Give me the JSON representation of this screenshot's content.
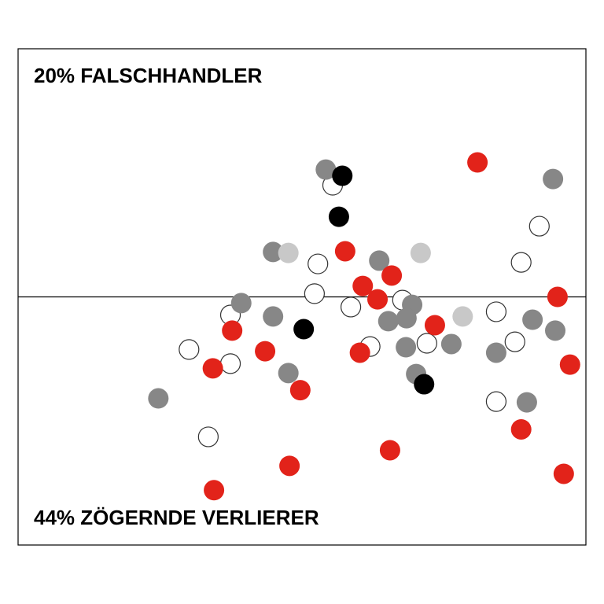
{
  "chart_data": {
    "type": "scatter",
    "annotations": [
      "20% FALSCHHANDLER",
      "44% ZÖGERNDE VERLIERER"
    ],
    "xlim": [
      0,
      100
    ],
    "ylim": [
      -100,
      100
    ],
    "hlines": [
      0
    ],
    "series": [
      {
        "color": "#ffffff",
        "outline": "#333333",
        "x": [
          55.4,
          91.8,
          52.8,
          88.6,
          52.2,
          67.7,
          58.6,
          37.4,
          84.2,
          62.0,
          72.0,
          87.5,
          30.1,
          37.4,
          84.2,
          33.5
        ],
        "values": [
          45.0,
          28.5,
          13.3,
          13.9,
          1.3,
          -1.3,
          -4.1,
          -7.3,
          -6.0,
          -20.0,
          -18.7,
          -18.1,
          -21.2,
          -26.9,
          -42.2,
          -56.4
        ]
      },
      {
        "color": "#878787",
        "x": [
          54.2,
          94.2,
          44.9,
          63.6,
          39.3,
          69.4,
          44.9,
          65.2,
          68.4,
          90.6,
          94.6,
          68.3,
          76.3,
          84.2,
          47.6,
          70.1,
          24.7,
          89.6
        ],
        "values": [
          51.3,
          47.5,
          18.1,
          14.6,
          -2.5,
          -3.2,
          -7.9,
          -9.8,
          -8.6,
          -9.2,
          -13.6,
          -20.3,
          -19.0,
          -22.5,
          -30.7,
          -31.1,
          -40.9,
          -42.5
        ]
      },
      {
        "color": "#c8c8c8",
        "x": [
          47.6,
          70.9,
          78.3
        ],
        "values": [
          17.7,
          17.7,
          -7.9
        ]
      },
      {
        "color": "#000000",
        "x": [
          57.1,
          56.5,
          50.3,
          71.5
        ],
        "values": [
          48.8,
          32.3,
          -13.0,
          -35.2
        ]
      },
      {
        "color": "#e2231a",
        "x": [
          80.9,
          57.6,
          65.8,
          60.7,
          63.3,
          95.0,
          73.4,
          37.7,
          43.5,
          60.2,
          97.2,
          34.3,
          49.7,
          88.6,
          65.5,
          47.8,
          96.1,
          34.5
        ],
        "values": [
          54.2,
          18.4,
          8.6,
          4.4,
          -1.0,
          0,
          -11.4,
          -13.6,
          -21.9,
          -22.5,
          -27.3,
          -28.8,
          -37.6,
          -53.4,
          -61.8,
          -68.1,
          -71.3,
          -77.9
        ]
      }
    ]
  }
}
